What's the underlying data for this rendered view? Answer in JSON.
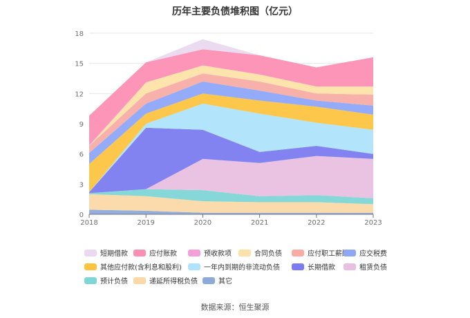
{
  "chart_data": {
    "type": "area",
    "title": "历年主要负债堆积图（亿元）",
    "xlabel": "",
    "ylabel": "",
    "categories": [
      "2018",
      "2019",
      "2020",
      "2021",
      "2022",
      "2023"
    ],
    "yticks": [
      "0",
      "3",
      "6",
      "9",
      "12",
      "15",
      "18"
    ],
    "ylim": [
      0,
      18
    ],
    "stacked": true,
    "grid": "horizontal",
    "legend_position": "bottom",
    "series": [
      {
        "name": "其它",
        "color": "#8eaadb",
        "values": [
          0.45,
          0.35,
          0.15,
          0.15,
          0.15,
          0.15
        ]
      },
      {
        "name": "递延所得税负债",
        "color": "#fbd9a7",
        "values": [
          1.55,
          1.45,
          1.15,
          1.05,
          1.05,
          0.85
        ]
      },
      {
        "name": "预计负债",
        "color": "#7fd6d6",
        "values": [
          0.1,
          0.7,
          1.1,
          0.6,
          0.7,
          0.6
        ]
      },
      {
        "name": "租赁负债",
        "color": "#e8c0df",
        "values": [
          0.0,
          0.0,
          3.1,
          3.3,
          3.9,
          3.9
        ]
      },
      {
        "name": "长期借款",
        "color": "#7b7bf0",
        "values": [
          0.1,
          6.1,
          2.9,
          1.1,
          1.0,
          0.5
        ]
      },
      {
        "name": "一年内到期的非流动负债",
        "color": "#aee3fb",
        "values": [
          0.0,
          0.4,
          2.6,
          3.8,
          2.3,
          2.4
        ]
      },
      {
        "name": "其他应付款(含利息和股利)",
        "color": "#fcc440",
        "values": [
          2.8,
          1.0,
          1.0,
          1.3,
          1.6,
          1.5
        ]
      },
      {
        "name": "应交税费",
        "color": "#8da6f8",
        "values": [
          1.1,
          1.0,
          1.2,
          1.0,
          0.6,
          0.9
        ]
      },
      {
        "name": "应付职工薪酬",
        "color": "#f8aca5",
        "values": [
          0.7,
          1.0,
          0.8,
          0.9,
          0.7,
          1.1
        ]
      },
      {
        "name": "合同负债",
        "color": "#fde1a8",
        "values": [
          0.0,
          1.1,
          0.8,
          0.7,
          0.7,
          0.8
        ]
      },
      {
        "name": "预收款项",
        "color": "#f3a0d8",
        "values": [
          0.1,
          0.0,
          0.0,
          0.0,
          0.0,
          0.0
        ]
      },
      {
        "name": "应付账款",
        "color": "#fc8fb3",
        "values": [
          2.9,
          2.0,
          1.6,
          1.9,
          1.9,
          2.9
        ]
      },
      {
        "name": "短期借款",
        "color": "#ead9f0",
        "values": [
          0.0,
          0.0,
          1.0,
          0.0,
          0.0,
          0.0
        ]
      }
    ],
    "legend_order": [
      "短期借款",
      "应付账款",
      "预收款项",
      "合同负债",
      "应付职工薪酬",
      "应交税费",
      "其他应付款(含利息和股利)",
      "一年内到期的非流动负债",
      "长期借款",
      "租赁负债",
      "预计负债",
      "递延所得税负债",
      "其它"
    ],
    "source": "数据来源：恒生聚源"
  }
}
